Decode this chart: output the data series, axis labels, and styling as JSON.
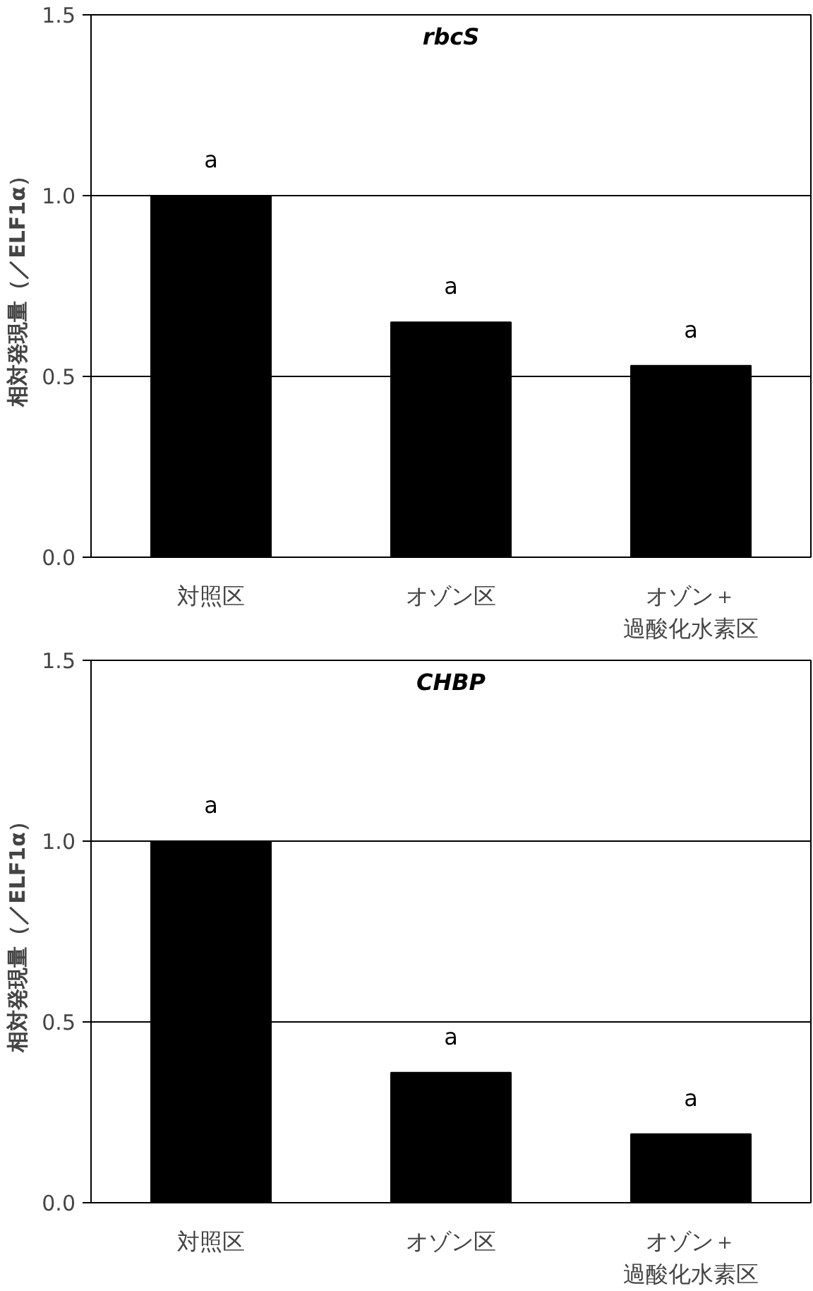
{
  "chart_data": [
    {
      "type": "bar",
      "title": "rbcS",
      "ylabel": "相対発現量（／ELF1α）",
      "categories": [
        "対照区",
        "オゾン区",
        "オゾン＋過酸化水素区"
      ],
      "values": [
        1.0,
        0.65,
        0.53
      ],
      "color": "#000000",
      "ylim": [
        0,
        1.5
      ],
      "yticks": [
        {
          "value": 0,
          "label": "0.0"
        },
        {
          "value": 0.5,
          "label": "0.5"
        },
        {
          "value": 1,
          "label": "1.0"
        },
        {
          "value": 1.5,
          "label": "1.5"
        }
      ],
      "grid": "y",
      "annotations": [
        {
          "text": "a",
          "x": "対照区",
          "y": 1.0
        },
        {
          "text": "a",
          "x": "オゾン区",
          "y": 0.65
        },
        {
          "text": "a",
          "x": "オゾン＋過酸化水素区",
          "y": 0.53
        }
      ]
    },
    {
      "type": "bar",
      "title": "CHBP",
      "ylabel": "相対発現量（／ELF1α）",
      "categories": [
        "対照区",
        "オゾン区",
        "オゾン＋過酸化水素区"
      ],
      "values": [
        1.0,
        0.36,
        0.19
      ],
      "color": "#000000",
      "ylim": [
        0,
        1.5
      ],
      "yticks": [
        {
          "value": 0,
          "label": "0.0"
        },
        {
          "value": 0.5,
          "label": "0.5"
        },
        {
          "value": 1,
          "label": "1.0"
        },
        {
          "value": 1.5,
          "label": "1.5"
        }
      ],
      "grid": "y",
      "annotations": [
        {
          "text": "a",
          "x": "対照区",
          "y": 1.0
        },
        {
          "text": "a",
          "x": "オゾン区",
          "y": 0.36
        },
        {
          "text": "a",
          "x": "オゾン＋過酸化水素区",
          "y": 0.19
        }
      ]
    }
  ]
}
